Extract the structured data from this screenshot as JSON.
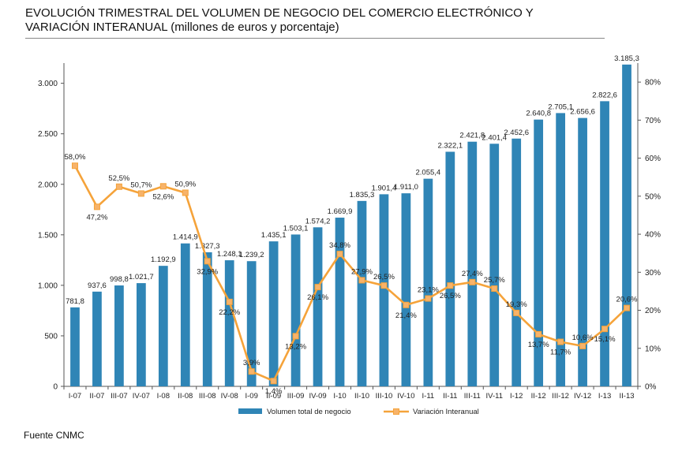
{
  "title": {
    "line1": "EVOLUCIÓN TRIMESTRAL DEL VOLUMEN DE NEGOCIO DEL COMERCIO ELECTRÓNICO Y",
    "line2": "VARIACIÓN INTERANUAL (millones de euros y porcentaje)"
  },
  "source": "Fuente CNMC",
  "colors": {
    "bar": "#2f85b6",
    "line": "#f5a33a",
    "marker": "#f7b36a",
    "axis": "#555555"
  },
  "chart_data": {
    "type": "bar+line",
    "categories": [
      "I-07",
      "II-07",
      "III-07",
      "IV-07",
      "I-08",
      "II-08",
      "III-08",
      "IV-08",
      "I-09",
      "II-09",
      "III-09",
      "IV-09",
      "I-10",
      "II-10",
      "III-10",
      "IV-10",
      "I-11",
      "II-11",
      "III-11",
      "IV-11",
      "I-12",
      "II-12",
      "III-12",
      "IV-12",
      "I-13",
      "II-13"
    ],
    "series": [
      {
        "name": "Volumen total de negocio",
        "type": "bar",
        "axis": "left",
        "values": [
          781.8,
          937.6,
          998.8,
          1021.7,
          1192.9,
          1414.9,
          1327.3,
          1248.1,
          1239.2,
          1435.1,
          1503.1,
          1574.2,
          1669.9,
          1835.3,
          1901.4,
          1911.0,
          2055.4,
          2322.1,
          2421.8,
          2401.4,
          2452.6,
          2640.8,
          2705.1,
          2656.6,
          2822.6,
          3185.3
        ],
        "labels": [
          "781,8",
          "937,6",
          "998,8",
          "1.021,7",
          "1.192,9",
          "1.414,9",
          "1.327,3",
          "1.248,1",
          "1.239,2",
          "1.435,1",
          "1.503,1",
          "1.574,2",
          "1.669,9",
          "1.835,3",
          "1.901,4",
          "1.911,0",
          "2.055,4",
          "2.322,1",
          "2.421,8",
          "2.401,4",
          "2.452,6",
          "2.640,8",
          "2.705,1",
          "2.656,6",
          "2.822,6",
          "3.185,3"
        ]
      },
      {
        "name": "Variación Interanual",
        "type": "line",
        "axis": "right",
        "values": [
          58.0,
          47.2,
          52.5,
          50.7,
          52.6,
          50.9,
          32.9,
          22.2,
          3.9,
          1.4,
          13.2,
          26.1,
          34.8,
          27.9,
          26.5,
          21.4,
          23.1,
          26.5,
          27.4,
          25.7,
          19.3,
          13.7,
          11.7,
          10.6,
          15.1,
          20.6
        ],
        "labels": [
          "58,0%",
          "47,2%",
          "52,5%",
          "50,7%",
          "52,6%",
          "50,9%",
          "32,9%",
          "22,2%",
          "3,9%",
          "1,4%",
          "13,2%",
          "26,1%",
          "34,8%",
          "27,9%",
          "26,5%",
          "21,4%",
          "23,1%",
          "26,5%",
          "27,4%",
          "25,7%",
          "19,3%",
          "13,7%",
          "11,7%",
          "10,6%",
          "15,1%",
          "20,6%"
        ]
      }
    ],
    "y_left": {
      "min": 0,
      "max": 3200,
      "ticks": [
        0,
        500,
        1000,
        1500,
        2000,
        2500,
        3000
      ],
      "tick_labels": [
        "0",
        "500",
        "1.000",
        "1.500",
        "2.000",
        "2.500",
        "3.000"
      ]
    },
    "y_right": {
      "min": 0,
      "max": 85,
      "ticks": [
        0,
        10,
        20,
        30,
        40,
        50,
        60,
        70,
        80
      ],
      "tick_labels": [
        "0%",
        "10%",
        "20%",
        "30%",
        "40%",
        "50%",
        "60%",
        "70%",
        "80%"
      ]
    },
    "grid": false,
    "legend_position": "bottom"
  }
}
